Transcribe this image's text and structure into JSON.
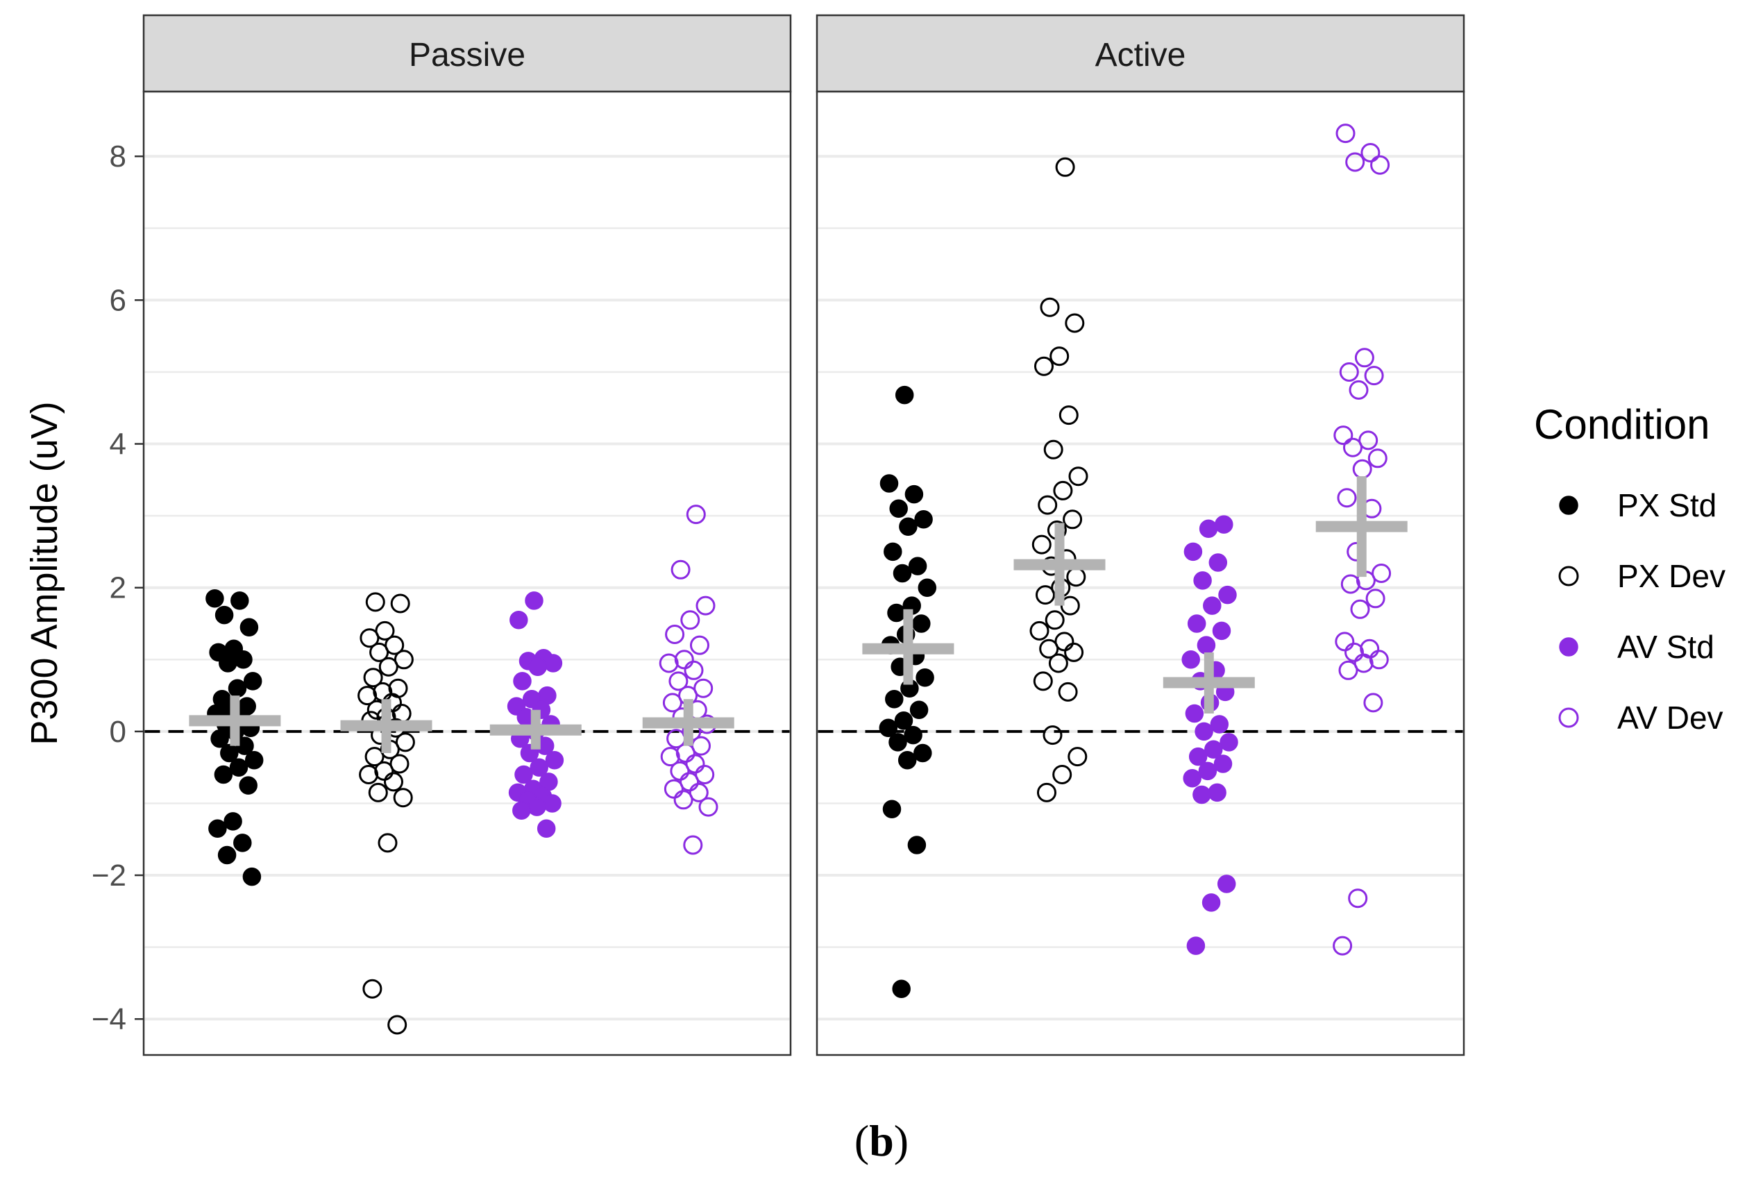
{
  "chart_data": {
    "type": "scatter",
    "subtype": "jittered strip plot with mean and error bars",
    "ylabel": "P300 Amplitude (uV)",
    "xlabel": "",
    "ylim": [
      -4.5,
      8.9
    ],
    "yticks": [
      -4,
      -2,
      0,
      2,
      4,
      6,
      8
    ],
    "ytick_labels": [
      "−4",
      "−2",
      "0",
      "2",
      "4",
      "6",
      "8"
    ],
    "grid": true,
    "reference_line": {
      "y": 0,
      "style": "dashed"
    },
    "legend": {
      "title": "Condition",
      "placement": "right",
      "entries": [
        {
          "label": "PX Std",
          "color": "#000000",
          "filled": true
        },
        {
          "label": "PX Dev",
          "color": "#000000",
          "filled": false
        },
        {
          "label": "AV Std",
          "color": "#8b2be2",
          "filled": true
        },
        {
          "label": "AV Dev",
          "color": "#8b2be2",
          "filled": false
        }
      ]
    },
    "summary_color": "#b3b3b3",
    "caption_prefix": "(",
    "caption_letter": "b",
    "caption_suffix": ")",
    "panels": [
      {
        "title": "Passive",
        "groups": [
          {
            "condition": "PX Std",
            "mean": 0.15,
            "ci": [
              -0.2,
              0.5
            ],
            "values": [
              1.85,
              1.82,
              1.62,
              1.45,
              1.15,
              1.1,
              1.0,
              0.95,
              0.7,
              0.6,
              0.45,
              0.35,
              0.3,
              0.25,
              0.2,
              0.1,
              0.05,
              0.0,
              -0.1,
              -0.2,
              -0.3,
              -0.4,
              -0.5,
              -0.6,
              -0.75,
              -1.25,
              -1.35,
              -1.55,
              -1.72,
              -2.02
            ]
          },
          {
            "condition": "PX Dev",
            "mean": 0.08,
            "ci": [
              -0.3,
              0.45
            ],
            "values": [
              1.8,
              1.78,
              1.4,
              1.3,
              1.2,
              1.1,
              1.0,
              0.9,
              0.75,
              0.6,
              0.55,
              0.5,
              0.4,
              0.3,
              0.25,
              0.2,
              0.15,
              0.05,
              -0.05,
              -0.15,
              -0.25,
              -0.35,
              -0.45,
              -0.55,
              -0.6,
              -0.7,
              -0.85,
              -0.92,
              -1.55,
              -3.58,
              -4.08
            ]
          },
          {
            "condition": "AV Std",
            "mean": 0.02,
            "ci": [
              -0.25,
              0.3
            ],
            "values": [
              1.82,
              1.55,
              1.02,
              0.98,
              0.95,
              0.9,
              0.7,
              0.5,
              0.45,
              0.35,
              0.3,
              0.2,
              0.1,
              0.0,
              -0.1,
              -0.2,
              -0.3,
              -0.4,
              -0.5,
              -0.6,
              -0.7,
              -0.8,
              -0.85,
              -0.9,
              -0.95,
              -1.0,
              -1.05,
              -1.1,
              -1.35
            ]
          },
          {
            "condition": "AV Dev",
            "mean": 0.12,
            "ci": [
              -0.2,
              0.45
            ],
            "values": [
              3.02,
              2.25,
              1.75,
              1.55,
              1.35,
              1.2,
              1.0,
              0.95,
              0.85,
              0.7,
              0.6,
              0.5,
              0.4,
              0.3,
              0.2,
              0.1,
              0.0,
              -0.1,
              -0.2,
              -0.3,
              -0.35,
              -0.45,
              -0.55,
              -0.6,
              -0.7,
              -0.8,
              -0.85,
              -0.95,
              -1.05,
              -1.58
            ]
          }
        ]
      },
      {
        "title": "Active",
        "groups": [
          {
            "condition": "PX Std",
            "mean": 1.15,
            "ci": [
              0.65,
              1.7
            ],
            "values": [
              4.68,
              3.45,
              3.3,
              3.1,
              2.95,
              2.85,
              2.5,
              2.3,
              2.2,
              2.0,
              1.75,
              1.65,
              1.5,
              1.35,
              1.2,
              1.05,
              0.9,
              0.75,
              0.6,
              0.45,
              0.3,
              0.15,
              0.05,
              -0.05,
              -0.15,
              -0.3,
              -0.4,
              -1.08,
              -1.58,
              -3.58
            ]
          },
          {
            "condition": "PX Dev",
            "mean": 2.32,
            "ci": [
              1.75,
              2.9
            ],
            "values": [
              7.85,
              5.9,
              5.68,
              5.22,
              5.08,
              4.4,
              3.92,
              3.55,
              3.35,
              3.15,
              2.95,
              2.8,
              2.6,
              2.4,
              2.3,
              2.15,
              2.0,
              1.9,
              1.75,
              1.55,
              1.4,
              1.25,
              1.15,
              1.1,
              0.95,
              0.7,
              0.55,
              -0.05,
              -0.35,
              -0.6,
              -0.85
            ]
          },
          {
            "condition": "AV Std",
            "mean": 0.68,
            "ci": [
              0.25,
              1.1
            ],
            "values": [
              2.88,
              2.82,
              2.5,
              2.35,
              2.1,
              1.9,
              1.75,
              1.5,
              1.4,
              1.2,
              1.0,
              0.85,
              0.7,
              0.55,
              0.4,
              0.25,
              0.1,
              0.0,
              -0.15,
              -0.25,
              -0.35,
              -0.45,
              -0.55,
              -0.65,
              -0.85,
              -0.88,
              -2.12,
              -2.38,
              -2.98
            ]
          },
          {
            "condition": "AV Dev",
            "mean": 2.85,
            "ci": [
              2.15,
              3.55
            ],
            "values": [
              8.32,
              8.05,
              7.92,
              7.88,
              5.2,
              5.0,
              4.95,
              4.75,
              4.12,
              4.05,
              3.95,
              3.8,
              3.65,
              3.25,
              3.1,
              2.5,
              2.2,
              2.1,
              2.05,
              1.85,
              1.7,
              1.25,
              1.15,
              1.1,
              1.0,
              0.95,
              0.85,
              0.4,
              -2.32,
              -2.98
            ]
          }
        ]
      }
    ]
  }
}
